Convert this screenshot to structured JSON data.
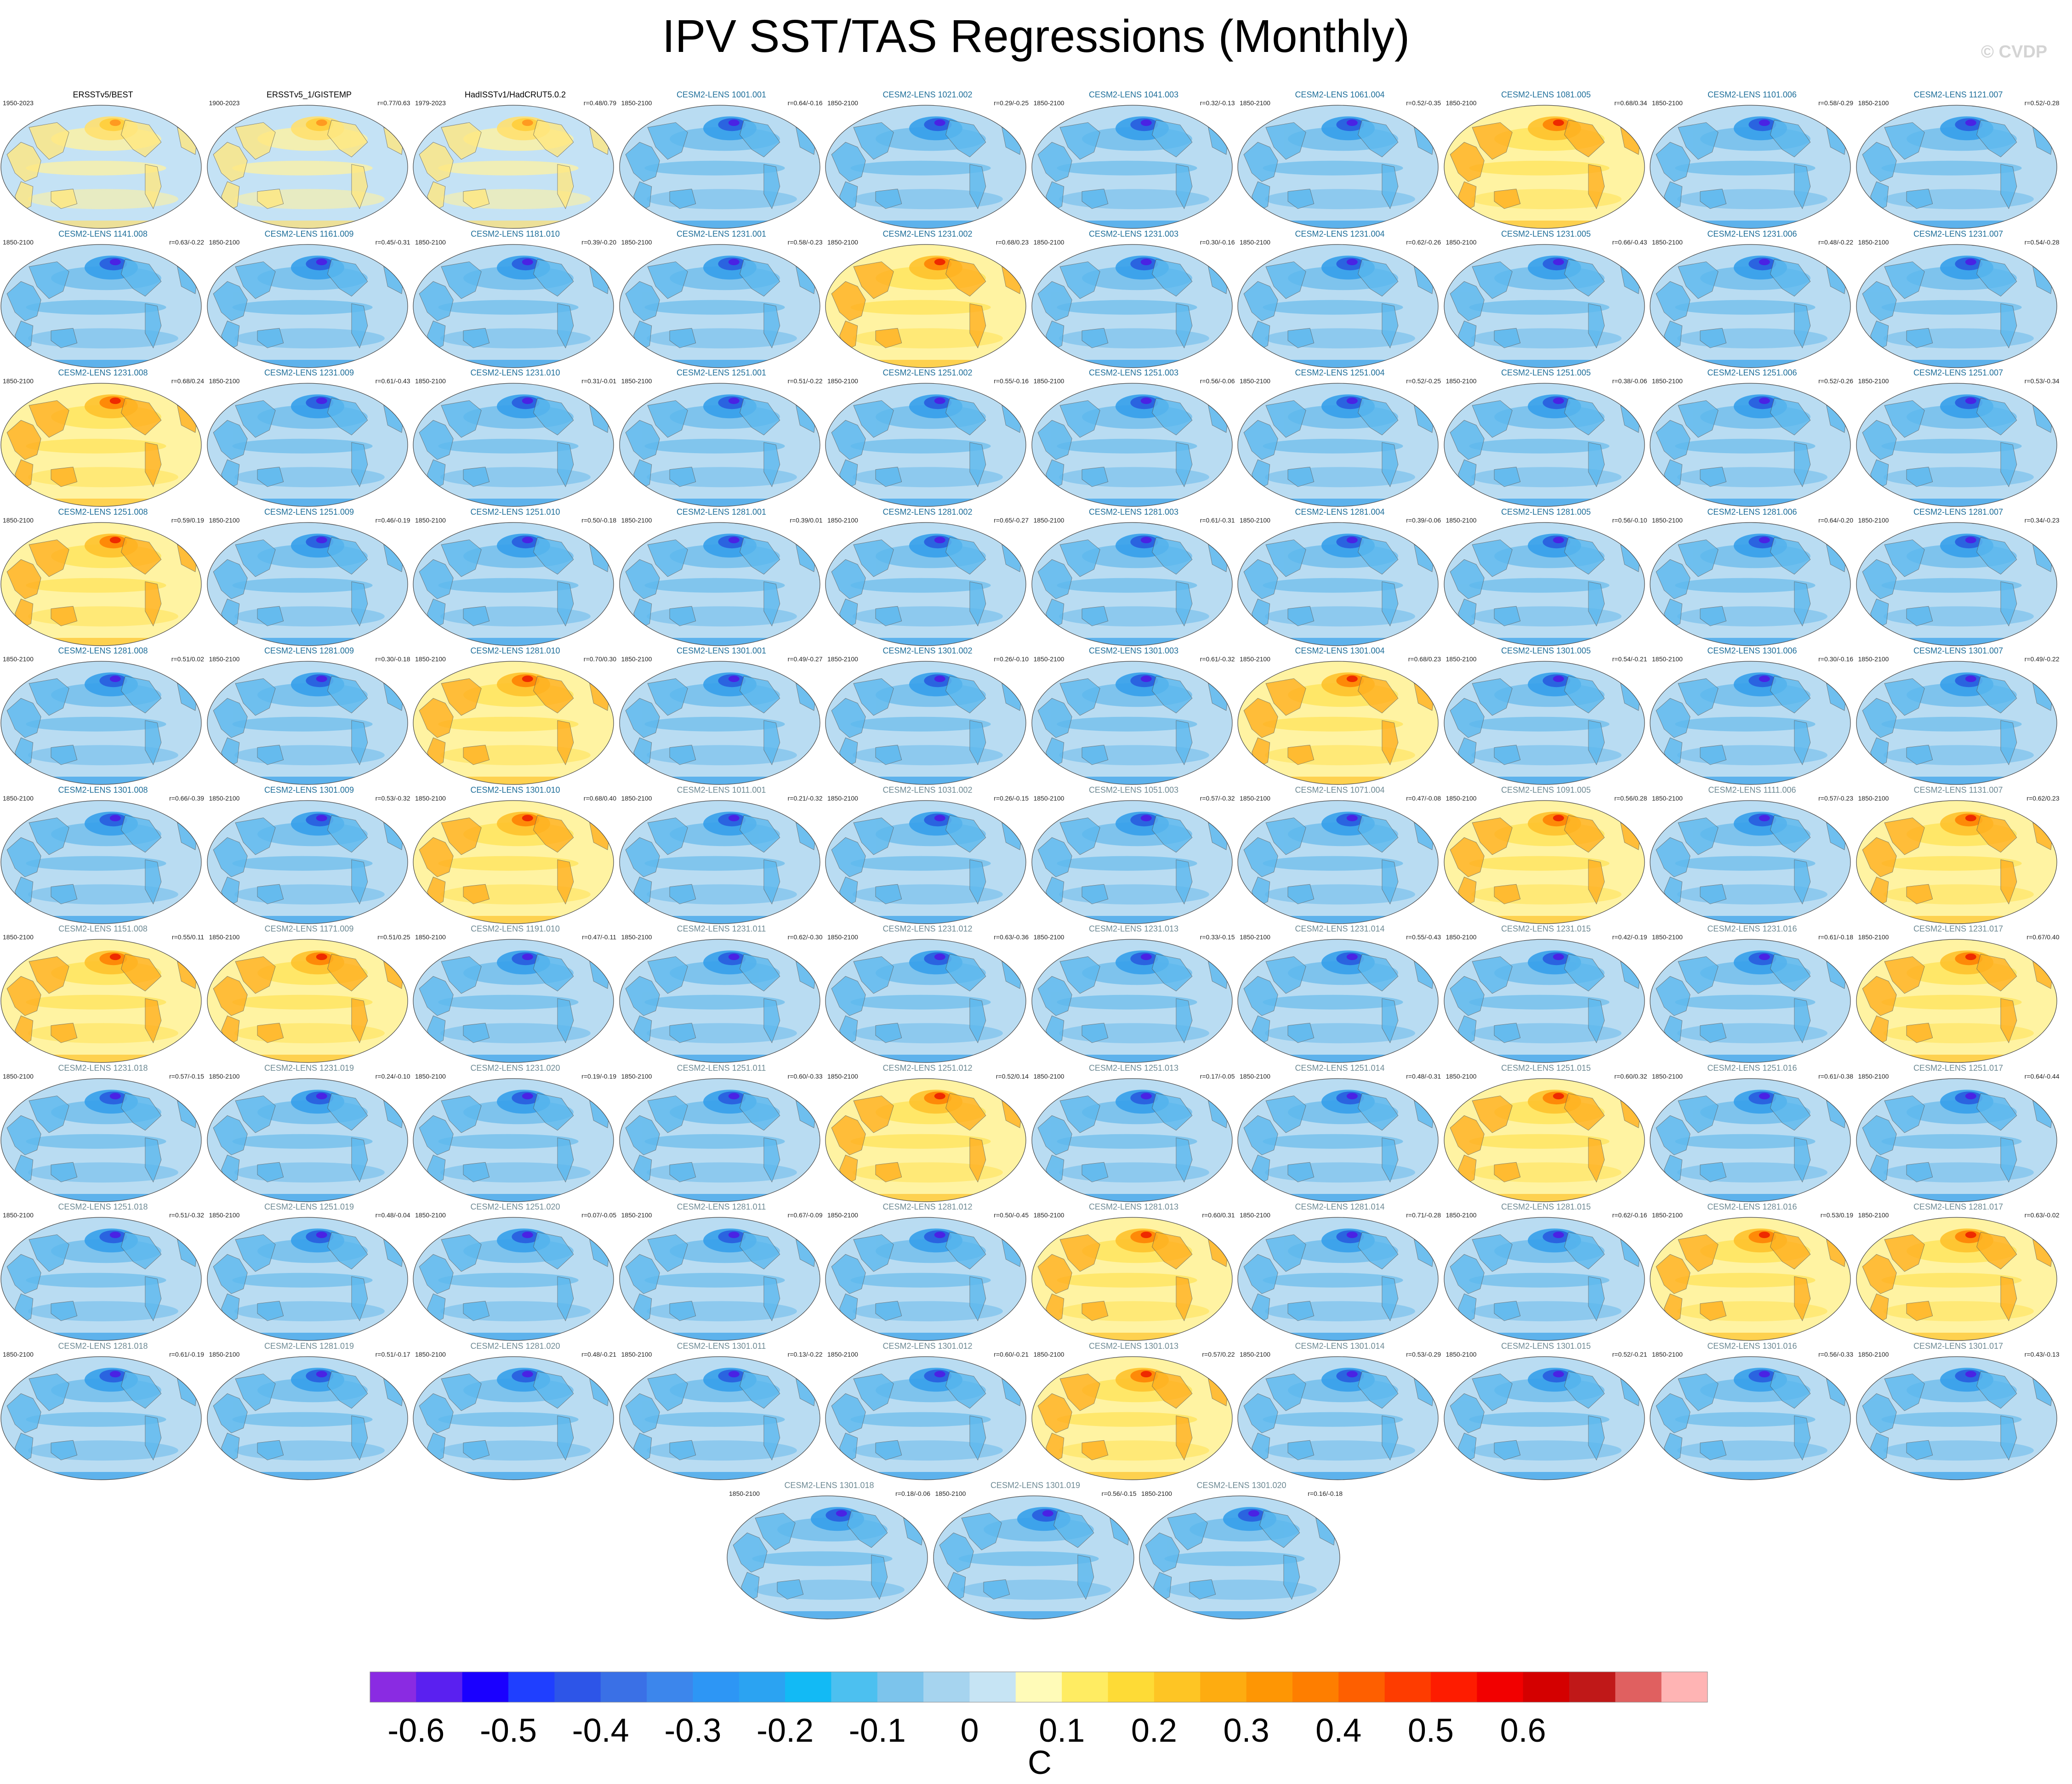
{
  "title": "IPV SST/TAS Regressions (Monthly)",
  "watermark": "© CVDP",
  "colorbar": {
    "unit": "C",
    "tick_labels": [
      "-0.6",
      "-0.5",
      "-0.4",
      "-0.3",
      "-0.2",
      "-0.1",
      "0",
      "0.1",
      "0.2",
      "0.3",
      "0.4",
      "0.5",
      "0.6"
    ],
    "colors": [
      "#8a2be2",
      "#5a20f0",
      "#1a00ff",
      "#1f3fff",
      "#2d55e8",
      "#3a70e6",
      "#3c86ec",
      "#2d96f5",
      "#2ba3f2",
      "#12baf5",
      "#4cc0f0",
      "#7cc4ec",
      "#a6d4ef",
      "#c6e4f4",
      "#fffbb8",
      "#ffec62",
      "#fedb36",
      "#fec524",
      "#feac10",
      "#fe9604",
      "#fe7e00",
      "#fe5f00",
      "#fe3c00",
      "#fe1c00",
      "#f20000",
      "#d40000",
      "#c01818",
      "#e06060",
      "#ffb4b4"
    ]
  },
  "chart_data": {
    "type": "heatmap",
    "title": "IPV SST/TAS Regressions (Monthly)",
    "colorbar_unit": "C",
    "colorbar_range": [
      -0.7,
      0.7
    ],
    "panels": [
      {
        "title": "ERSSTv5/BEST",
        "period": "1950-2023",
        "r": "",
        "style": "obs",
        "mode": "obs"
      },
      {
        "title": "ERSSTv5_1/GISTEMP",
        "period": "1900-2023",
        "r": "r=0.77/0.63",
        "style": "obs",
        "mode": "obs"
      },
      {
        "title": "HadISSTv1/HadCRUT5.0.2",
        "period": "1979-2023",
        "r": "r=0.48/0.79",
        "style": "obs",
        "mode": "obs"
      },
      {
        "title": "CESM2-LENS 1001.001",
        "period": "1850-2100",
        "r": "r=0.64/-0.16",
        "style": "mem",
        "mode": "neg"
      },
      {
        "title": "CESM2-LENS 1021.002",
        "period": "1850-2100",
        "r": "r=0.29/-0.25",
        "style": "mem",
        "mode": "neg"
      },
      {
        "title": "CESM2-LENS 1041.003",
        "period": "1850-2100",
        "r": "r=0.32/-0.13",
        "style": "mem",
        "mode": "neg"
      },
      {
        "title": "CESM2-LENS 1061.004",
        "period": "1850-2100",
        "r": "r=0.52/-0.35",
        "style": "mem",
        "mode": "neg"
      },
      {
        "title": "CESM2-LENS 1081.005",
        "period": "1850-2100",
        "r": "r=0.68/0.34",
        "style": "mem",
        "mode": "pos"
      },
      {
        "title": "CESM2-LENS 1101.006",
        "period": "1850-2100",
        "r": "r=0.58/-0.29",
        "style": "mem",
        "mode": "neg"
      },
      {
        "title": "CESM2-LENS 1121.007",
        "period": "1850-2100",
        "r": "r=0.52/-0.28",
        "style": "mem",
        "mode": "neg"
      },
      {
        "title": "CESM2-LENS 1141.008",
        "period": "1850-2100",
        "r": "r=0.63/-0.22",
        "style": "mem",
        "mode": "neg"
      },
      {
        "title": "CESM2-LENS 1161.009",
        "period": "1850-2100",
        "r": "r=0.45/-0.31",
        "style": "mem",
        "mode": "neg"
      },
      {
        "title": "CESM2-LENS 1181.010",
        "period": "1850-2100",
        "r": "r=0.39/-0.20",
        "style": "mem",
        "mode": "neg"
      },
      {
        "title": "CESM2-LENS 1231.001",
        "period": "1850-2100",
        "r": "r=0.58/-0.23",
        "style": "mem",
        "mode": "neg"
      },
      {
        "title": "CESM2-LENS 1231.002",
        "period": "1850-2100",
        "r": "r=0.68/0.23",
        "style": "mem",
        "mode": "pos"
      },
      {
        "title": "CESM2-LENS 1231.003",
        "period": "1850-2100",
        "r": "r=0.30/-0.16",
        "style": "mem",
        "mode": "neg"
      },
      {
        "title": "CESM2-LENS 1231.004",
        "period": "1850-2100",
        "r": "r=0.62/-0.26",
        "style": "mem",
        "mode": "neg"
      },
      {
        "title": "CESM2-LENS 1231.005",
        "period": "1850-2100",
        "r": "r=0.66/-0.43",
        "style": "mem",
        "mode": "neg"
      },
      {
        "title": "CESM2-LENS 1231.006",
        "period": "1850-2100",
        "r": "r=0.48/-0.22",
        "style": "mem",
        "mode": "neg"
      },
      {
        "title": "CESM2-LENS 1231.007",
        "period": "1850-2100",
        "r": "r=0.54/-0.28",
        "style": "mem",
        "mode": "neg"
      },
      {
        "title": "CESM2-LENS 1231.008",
        "period": "1850-2100",
        "r": "r=0.68/0.24",
        "style": "mem",
        "mode": "pos"
      },
      {
        "title": "CESM2-LENS 1231.009",
        "period": "1850-2100",
        "r": "r=0.61/-0.43",
        "style": "mem",
        "mode": "neg"
      },
      {
        "title": "CESM2-LENS 1231.010",
        "period": "1850-2100",
        "r": "r=0.31/-0.01",
        "style": "mem",
        "mode": "neg"
      },
      {
        "title": "CESM2-LENS 1251.001",
        "period": "1850-2100",
        "r": "r=0.51/-0.22",
        "style": "mem",
        "mode": "neg"
      },
      {
        "title": "CESM2-LENS 1251.002",
        "period": "1850-2100",
        "r": "r=0.55/-0.16",
        "style": "mem",
        "mode": "neg"
      },
      {
        "title": "CESM2-LENS 1251.003",
        "period": "1850-2100",
        "r": "r=0.56/-0.06",
        "style": "mem",
        "mode": "neg"
      },
      {
        "title": "CESM2-LENS 1251.004",
        "period": "1850-2100",
        "r": "r=0.52/-0.25",
        "style": "mem",
        "mode": "neg"
      },
      {
        "title": "CESM2-LENS 1251.005",
        "period": "1850-2100",
        "r": "r=0.38/-0.06",
        "style": "mem",
        "mode": "neg"
      },
      {
        "title": "CESM2-LENS 1251.006",
        "period": "1850-2100",
        "r": "r=0.52/-0.26",
        "style": "mem",
        "mode": "neg"
      },
      {
        "title": "CESM2-LENS 1251.007",
        "period": "1850-2100",
        "r": "r=0.53/-0.34",
        "style": "mem",
        "mode": "neg"
      },
      {
        "title": "CESM2-LENS 1251.008",
        "period": "1850-2100",
        "r": "r=0.59/0.19",
        "style": "mem",
        "mode": "pos"
      },
      {
        "title": "CESM2-LENS 1251.009",
        "period": "1850-2100",
        "r": "r=0.46/-0.19",
        "style": "mem",
        "mode": "neg"
      },
      {
        "title": "CESM2-LENS 1251.010",
        "period": "1850-2100",
        "r": "r=0.50/-0.18",
        "style": "mem",
        "mode": "neg"
      },
      {
        "title": "CESM2-LENS 1281.001",
        "period": "1850-2100",
        "r": "r=0.39/0.01",
        "style": "mem",
        "mode": "neg"
      },
      {
        "title": "CESM2-LENS 1281.002",
        "period": "1850-2100",
        "r": "r=0.65/-0.27",
        "style": "mem",
        "mode": "neg"
      },
      {
        "title": "CESM2-LENS 1281.003",
        "period": "1850-2100",
        "r": "r=0.61/-0.31",
        "style": "mem",
        "mode": "neg"
      },
      {
        "title": "CESM2-LENS 1281.004",
        "period": "1850-2100",
        "r": "r=0.39/-0.06",
        "style": "mem",
        "mode": "neg"
      },
      {
        "title": "CESM2-LENS 1281.005",
        "period": "1850-2100",
        "r": "r=0.56/-0.10",
        "style": "mem",
        "mode": "neg"
      },
      {
        "title": "CESM2-LENS 1281.006",
        "period": "1850-2100",
        "r": "r=0.64/-0.20",
        "style": "mem",
        "mode": "neg"
      },
      {
        "title": "CESM2-LENS 1281.007",
        "period": "1850-2100",
        "r": "r=0.34/-0.23",
        "style": "mem",
        "mode": "neg"
      },
      {
        "title": "CESM2-LENS 1281.008",
        "period": "1850-2100",
        "r": "r=0.51/0.02",
        "style": "mem",
        "mode": "neg"
      },
      {
        "title": "CESM2-LENS 1281.009",
        "period": "1850-2100",
        "r": "r=0.30/-0.18",
        "style": "mem",
        "mode": "neg"
      },
      {
        "title": "CESM2-LENS 1281.010",
        "period": "1850-2100",
        "r": "r=0.70/0.30",
        "style": "mem",
        "mode": "pos"
      },
      {
        "title": "CESM2-LENS 1301.001",
        "period": "1850-2100",
        "r": "r=0.49/-0.27",
        "style": "mem",
        "mode": "neg"
      },
      {
        "title": "CESM2-LENS 1301.002",
        "period": "1850-2100",
        "r": "r=0.26/-0.10",
        "style": "mem",
        "mode": "neg"
      },
      {
        "title": "CESM2-LENS 1301.003",
        "period": "1850-2100",
        "r": "r=0.61/-0.32",
        "style": "mem",
        "mode": "neg"
      },
      {
        "title": "CESM2-LENS 1301.004",
        "period": "1850-2100",
        "r": "r=0.68/0.23",
        "style": "mem",
        "mode": "pos"
      },
      {
        "title": "CESM2-LENS 1301.005",
        "period": "1850-2100",
        "r": "r=0.54/-0.21",
        "style": "mem",
        "mode": "neg"
      },
      {
        "title": "CESM2-LENS 1301.006",
        "period": "1850-2100",
        "r": "r=0.30/-0.16",
        "style": "mem",
        "mode": "neg"
      },
      {
        "title": "CESM2-LENS 1301.007",
        "period": "1850-2100",
        "r": "r=0.49/-0.22",
        "style": "mem",
        "mode": "neg"
      },
      {
        "title": "CESM2-LENS 1301.008",
        "period": "1850-2100",
        "r": "r=0.66/-0.39",
        "style": "mem",
        "mode": "neg"
      },
      {
        "title": "CESM2-LENS 1301.009",
        "period": "1850-2100",
        "r": "r=0.53/-0.32",
        "style": "mem",
        "mode": "neg"
      },
      {
        "title": "CESM2-LENS 1301.010",
        "period": "1850-2100",
        "r": "r=0.68/0.40",
        "style": "mem",
        "mode": "pos"
      },
      {
        "title": "CESM2-LENS 1011.001",
        "period": "1850-2100",
        "r": "r=0.21/-0.32",
        "style": "mem2",
        "mode": "neg"
      },
      {
        "title": "CESM2-LENS 1031.002",
        "period": "1850-2100",
        "r": "r=0.26/-0.15",
        "style": "mem2",
        "mode": "neg"
      },
      {
        "title": "CESM2-LENS 1051.003",
        "period": "1850-2100",
        "r": "r=0.57/-0.32",
        "style": "mem2",
        "mode": "neg"
      },
      {
        "title": "CESM2-LENS 1071.004",
        "period": "1850-2100",
        "r": "r=0.47/-0.08",
        "style": "mem2",
        "mode": "neg"
      },
      {
        "title": "CESM2-LENS 1091.005",
        "period": "1850-2100",
        "r": "r=0.56/0.28",
        "style": "mem2",
        "mode": "pos"
      },
      {
        "title": "CESM2-LENS 1111.006",
        "period": "1850-2100",
        "r": "r=0.57/-0.23",
        "style": "mem2",
        "mode": "neg"
      },
      {
        "title": "CESM2-LENS 1131.007",
        "period": "1850-2100",
        "r": "r=0.62/0.23",
        "style": "mem2",
        "mode": "pos"
      },
      {
        "title": "CESM2-LENS 1151.008",
        "period": "1850-2100",
        "r": "r=0.55/0.11",
        "style": "mem2",
        "mode": "pos"
      },
      {
        "title": "CESM2-LENS 1171.009",
        "period": "1850-2100",
        "r": "r=0.51/0.25",
        "style": "mem2",
        "mode": "pos"
      },
      {
        "title": "CESM2-LENS 1191.010",
        "period": "1850-2100",
        "r": "r=0.47/-0.11",
        "style": "mem2",
        "mode": "neg"
      },
      {
        "title": "CESM2-LENS 1231.011",
        "period": "1850-2100",
        "r": "r=0.62/-0.30",
        "style": "mem2",
        "mode": "neg"
      },
      {
        "title": "CESM2-LENS 1231.012",
        "period": "1850-2100",
        "r": "r=0.63/-0.36",
        "style": "mem2",
        "mode": "neg"
      },
      {
        "title": "CESM2-LENS 1231.013",
        "period": "1850-2100",
        "r": "r=0.33/-0.15",
        "style": "mem2",
        "mode": "neg"
      },
      {
        "title": "CESM2-LENS 1231.014",
        "period": "1850-2100",
        "r": "r=0.55/-0.43",
        "style": "mem2",
        "mode": "neg"
      },
      {
        "title": "CESM2-LENS 1231.015",
        "period": "1850-2100",
        "r": "r=0.42/-0.19",
        "style": "mem2",
        "mode": "neg"
      },
      {
        "title": "CESM2-LENS 1231.016",
        "period": "1850-2100",
        "r": "r=0.61/-0.18",
        "style": "mem2",
        "mode": "neg"
      },
      {
        "title": "CESM2-LENS 1231.017",
        "period": "1850-2100",
        "r": "r=0.67/0.40",
        "style": "mem2",
        "mode": "pos"
      },
      {
        "title": "CESM2-LENS 1231.018",
        "period": "1850-2100",
        "r": "r=0.57/-0.15",
        "style": "mem2",
        "mode": "neg"
      },
      {
        "title": "CESM2-LENS 1231.019",
        "period": "1850-2100",
        "r": "r=0.24/-0.10",
        "style": "mem2",
        "mode": "neg"
      },
      {
        "title": "CESM2-LENS 1231.020",
        "period": "1850-2100",
        "r": "r=0.19/-0.19",
        "style": "mem2",
        "mode": "neg"
      },
      {
        "title": "CESM2-LENS 1251.011",
        "period": "1850-2100",
        "r": "r=0.60/-0.33",
        "style": "mem2",
        "mode": "neg"
      },
      {
        "title": "CESM2-LENS 1251.012",
        "period": "1850-2100",
        "r": "r=0.52/0.14",
        "style": "mem2",
        "mode": "pos"
      },
      {
        "title": "CESM2-LENS 1251.013",
        "period": "1850-2100",
        "r": "r=0.17/-0.05",
        "style": "mem2",
        "mode": "neg"
      },
      {
        "title": "CESM2-LENS 1251.014",
        "period": "1850-2100",
        "r": "r=0.48/-0.31",
        "style": "mem2",
        "mode": "neg"
      },
      {
        "title": "CESM2-LENS 1251.015",
        "period": "1850-2100",
        "r": "r=0.60/0.32",
        "style": "mem2",
        "mode": "pos"
      },
      {
        "title": "CESM2-LENS 1251.016",
        "period": "1850-2100",
        "r": "r=0.61/-0.38",
        "style": "mem2",
        "mode": "neg"
      },
      {
        "title": "CESM2-LENS 1251.017",
        "period": "1850-2100",
        "r": "r=0.64/-0.44",
        "style": "mem2",
        "mode": "neg"
      },
      {
        "title": "CESM2-LENS 1251.018",
        "period": "1850-2100",
        "r": "r=0.51/-0.32",
        "style": "mem2",
        "mode": "neg"
      },
      {
        "title": "CESM2-LENS 1251.019",
        "period": "1850-2100",
        "r": "r=0.48/-0.04",
        "style": "mem2",
        "mode": "neg"
      },
      {
        "title": "CESM2-LENS 1251.020",
        "period": "1850-2100",
        "r": "r=0.07/-0.05",
        "style": "mem2",
        "mode": "neg"
      },
      {
        "title": "CESM2-LENS 1281.011",
        "period": "1850-2100",
        "r": "r=0.67/-0.09",
        "style": "mem2",
        "mode": "neg"
      },
      {
        "title": "CESM2-LENS 1281.012",
        "period": "1850-2100",
        "r": "r=0.50/-0.45",
        "style": "mem2",
        "mode": "neg"
      },
      {
        "title": "CESM2-LENS 1281.013",
        "period": "1850-2100",
        "r": "r=0.60/0.31",
        "style": "mem2",
        "mode": "pos"
      },
      {
        "title": "CESM2-LENS 1281.014",
        "period": "1850-2100",
        "r": "r=0.71/-0.28",
        "style": "mem2",
        "mode": "neg"
      },
      {
        "title": "CESM2-LENS 1281.015",
        "period": "1850-2100",
        "r": "r=0.62/-0.16",
        "style": "mem2",
        "mode": "neg"
      },
      {
        "title": "CESM2-LENS 1281.016",
        "period": "1850-2100",
        "r": "r=0.53/0.19",
        "style": "mem2",
        "mode": "pos"
      },
      {
        "title": "CESM2-LENS 1281.017",
        "period": "1850-2100",
        "r": "r=0.63/-0.02",
        "style": "mem2",
        "mode": "pos"
      },
      {
        "title": "CESM2-LENS 1281.018",
        "period": "1850-2100",
        "r": "r=0.61/-0.19",
        "style": "mem2",
        "mode": "neg"
      },
      {
        "title": "CESM2-LENS 1281.019",
        "period": "1850-2100",
        "r": "r=0.51/-0.17",
        "style": "mem2",
        "mode": "neg"
      },
      {
        "title": "CESM2-LENS 1281.020",
        "period": "1850-2100",
        "r": "r=0.48/-0.21",
        "style": "mem2",
        "mode": "neg"
      },
      {
        "title": "CESM2-LENS 1301.011",
        "period": "1850-2100",
        "r": "r=0.13/-0.22",
        "style": "mem2",
        "mode": "neg"
      },
      {
        "title": "CESM2-LENS 1301.012",
        "period": "1850-2100",
        "r": "r=0.60/-0.21",
        "style": "mem2",
        "mode": "neg"
      },
      {
        "title": "CESM2-LENS 1301.013",
        "period": "1850-2100",
        "r": "r=0.57/0.22",
        "style": "mem2",
        "mode": "pos"
      },
      {
        "title": "CESM2-LENS 1301.014",
        "period": "1850-2100",
        "r": "r=0.53/-0.29",
        "style": "mem2",
        "mode": "neg"
      },
      {
        "title": "CESM2-LENS 1301.015",
        "period": "1850-2100",
        "r": "r=0.52/-0.21",
        "style": "mem2",
        "mode": "neg"
      },
      {
        "title": "CESM2-LENS 1301.016",
        "period": "1850-2100",
        "r": "r=0.56/-0.33",
        "style": "mem2",
        "mode": "neg"
      },
      {
        "title": "CESM2-LENS 1301.017",
        "period": "1850-2100",
        "r": "r=0.43/-0.13",
        "style": "mem2",
        "mode": "neg"
      },
      {
        "title": "CESM2-LENS 1301.018",
        "period": "1850-2100",
        "r": "r=0.18/-0.06",
        "style": "mem2",
        "mode": "neg"
      },
      {
        "title": "CESM2-LENS 1301.019",
        "period": "1850-2100",
        "r": "r=0.56/-0.15",
        "style": "mem2",
        "mode": "neg"
      },
      {
        "title": "CESM2-LENS 1301.020",
        "period": "1850-2100",
        "r": "r=0.16/-0.18",
        "style": "mem2",
        "mode": "neg"
      }
    ]
  }
}
